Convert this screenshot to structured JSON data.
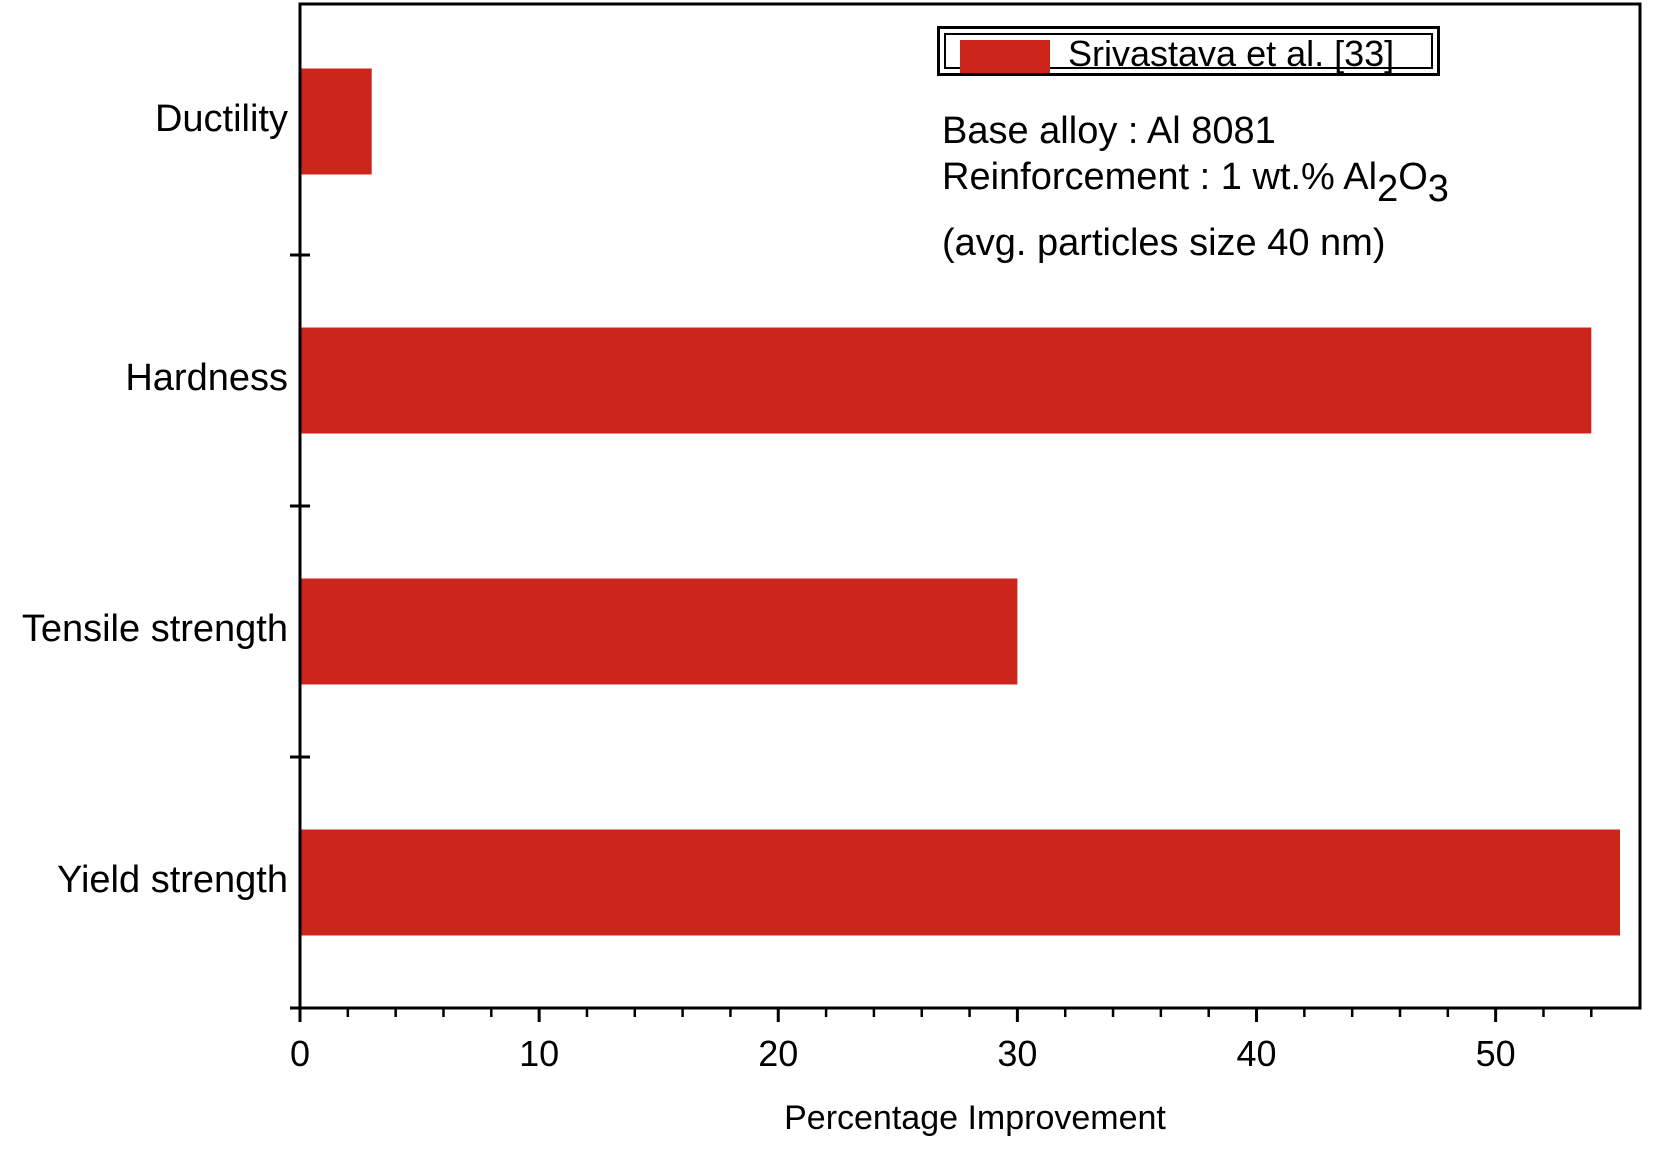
{
  "chart_data": {
    "type": "bar",
    "orientation": "horizontal",
    "categories": [
      "Ductility",
      "Hardness",
      "Tensile strength",
      "Yield strength"
    ],
    "series": [
      {
        "name": "Srivastava et al. [33]",
        "values": [
          3,
          54,
          30,
          55.2
        ],
        "color": "#cc261c"
      }
    ],
    "xlabel": "Percentage Improvement",
    "ylabel": "",
    "xlim": [
      0,
      58
    ],
    "xticks": [
      "0",
      "10",
      "20",
      "30",
      "40",
      "50"
    ],
    "grid": false,
    "legend_position": "top-right",
    "annotations": {
      "line1": "Base alloy : Al 8081",
      "line2_prefix": "Reinforcement : 1 wt.% Al",
      "line2_sub1": "2",
      "line2_mid": "O",
      "line2_sub2": "3",
      "line3": "(avg. particles size 40 nm)"
    }
  }
}
